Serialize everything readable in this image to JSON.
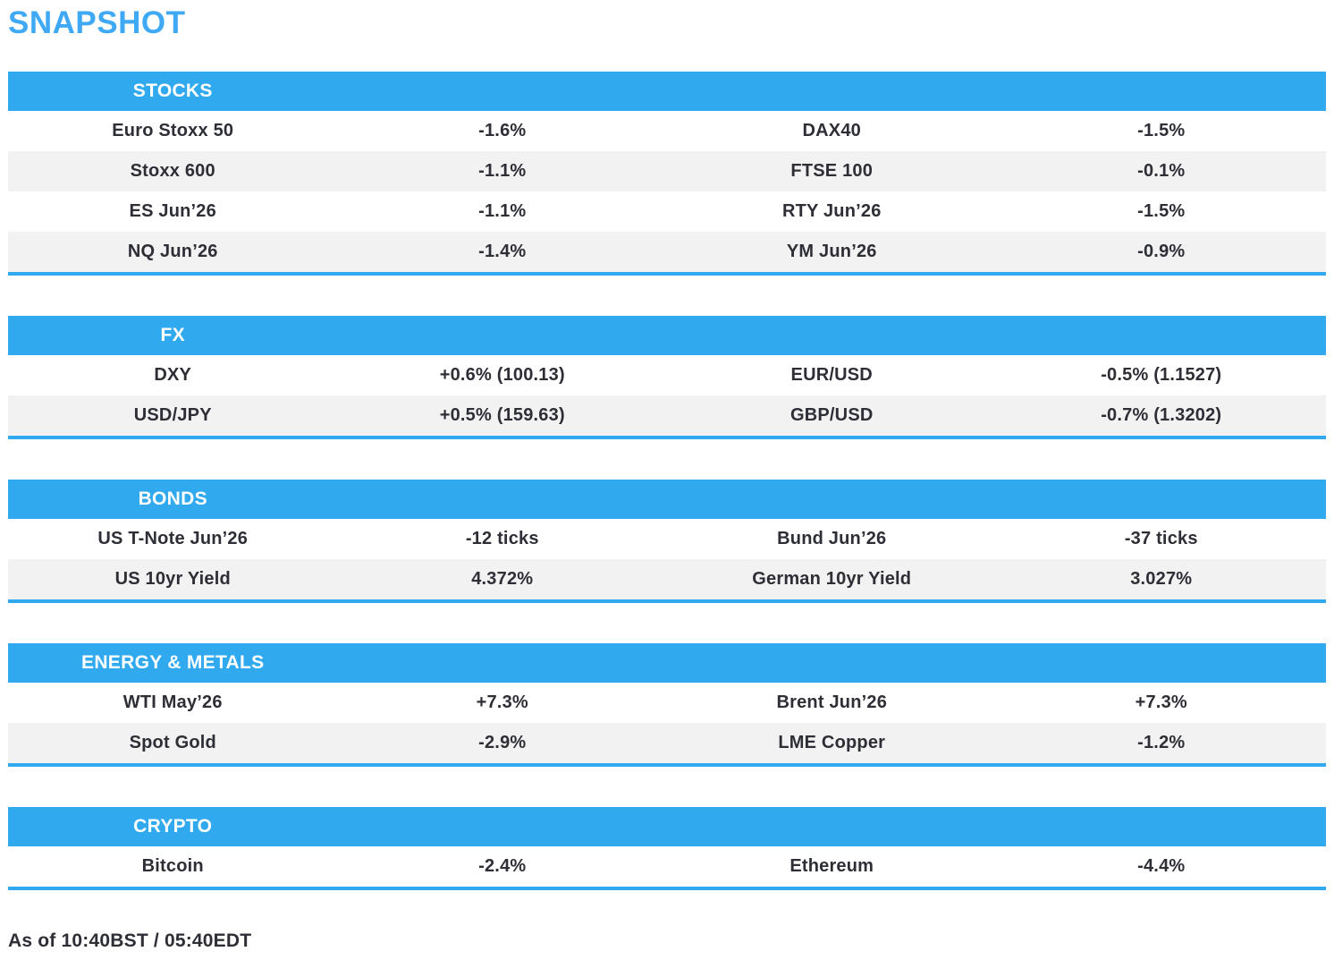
{
  "page": {
    "title": "SNAPSHOT",
    "footer": "As of 10:40BST / 05:40EDT"
  },
  "colors": {
    "accent_blue": "#31A9EE",
    "title_blue": "#3FA9F5",
    "row_alt_gray": "#F2F2F2",
    "text_dark": "#2E2F36",
    "header_text": "#FFFFFF"
  },
  "sections": [
    {
      "header": "STOCKS",
      "rows": [
        [
          "Euro Stoxx 50",
          "-1.6%",
          "DAX40",
          "-1.5%"
        ],
        [
          "Stoxx 600",
          "-1.1%",
          "FTSE 100",
          "-0.1%"
        ],
        [
          "ES Jun’26",
          "-1.1%",
          "RTY Jun’26",
          "-1.5%"
        ],
        [
          "NQ Jun’26",
          "-1.4%",
          "YM Jun’26",
          "-0.9%"
        ]
      ]
    },
    {
      "header": "FX",
      "rows": [
        [
          "DXY",
          "+0.6% (100.13)",
          "EUR/USD",
          "-0.5% (1.1527)"
        ],
        [
          "USD/JPY",
          "+0.5% (159.63)",
          "GBP/USD",
          "-0.7% (1.3202)"
        ]
      ]
    },
    {
      "header": "BONDS",
      "rows": [
        [
          "US T-Note Jun’26",
          "-12 ticks",
          "Bund Jun’26",
          "-37 ticks"
        ],
        [
          "US 10yr Yield",
          "4.372%",
          "German 10yr Yield",
          "3.027%"
        ]
      ]
    },
    {
      "header": "ENERGY & METALS",
      "rows": [
        [
          "WTI May’26",
          "+7.3%",
          "Brent Jun’26",
          "+7.3%"
        ],
        [
          "Spot Gold",
          "-2.9%",
          "LME Copper",
          "-1.2%"
        ]
      ]
    },
    {
      "header": "CRYPTO",
      "rows": [
        [
          "Bitcoin",
          "-2.4%",
          "Ethereum",
          "-4.4%"
        ]
      ]
    }
  ]
}
